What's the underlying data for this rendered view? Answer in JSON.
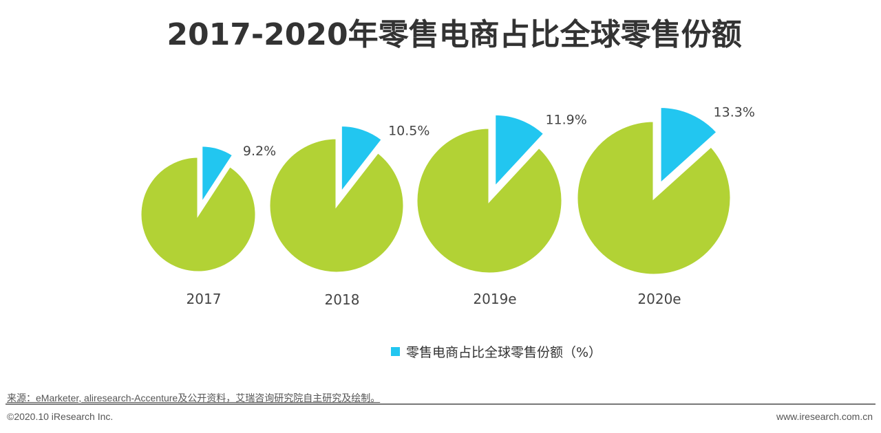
{
  "chart_data": {
    "type": "pie",
    "title": "2017-2020年零售电商占比全球零售份额",
    "series_name": "零售电商占比全球零售份额（%）",
    "categories": [
      "2017",
      "2018",
      "2019e",
      "2020e"
    ],
    "values": [
      9.2,
      10.5,
      11.9,
      13.3
    ],
    "value_labels": [
      "9.2%",
      "10.5%",
      "11.9%",
      "13.3%"
    ],
    "legend_position": "bottom",
    "colors": {
      "share": "#22c6f0",
      "rest": "#b2d235"
    }
  },
  "footer": {
    "source": "来源：eMarketer, aliresearch-Accenture及公开资料，艾瑞咨询研究院自主研究及绘制。",
    "copyright": "©2020.10 iResearch Inc.",
    "website": "www.iresearch.com.cn"
  }
}
